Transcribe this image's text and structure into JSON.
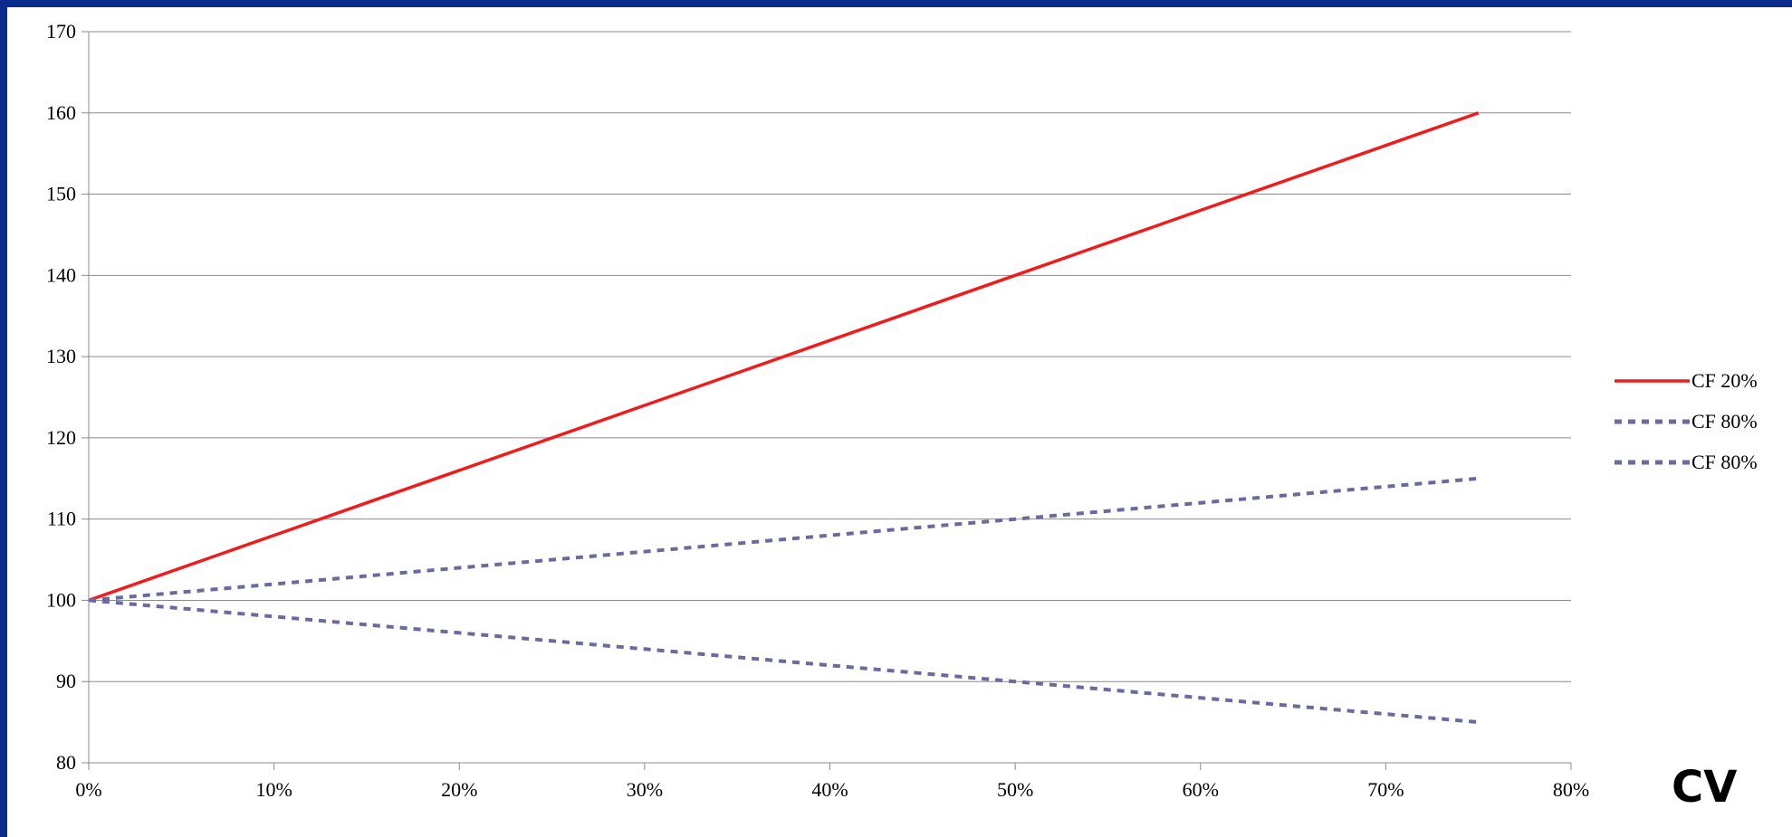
{
  "chart_data": {
    "type": "line",
    "title": "",
    "xlabel": "CV",
    "ylabel": "",
    "xlim": [
      0,
      0.8
    ],
    "ylim": [
      80,
      170
    ],
    "x_ticks": [
      0,
      0.1,
      0.2,
      0.3,
      0.4,
      0.5,
      0.6,
      0.7,
      0.8
    ],
    "x_tick_labels": [
      "0%",
      "10%",
      "20%",
      "30%",
      "40%",
      "50%",
      "60%",
      "70%",
      "80%"
    ],
    "y_ticks": [
      80,
      90,
      100,
      110,
      120,
      130,
      140,
      150,
      160,
      170
    ],
    "y_tick_labels": [
      "80",
      "90",
      "100",
      "110",
      "120",
      "130",
      "140",
      "150",
      "160",
      "170"
    ],
    "grid": "horizontal",
    "legend_position": "right",
    "x": [
      0,
      0.05,
      0.1,
      0.15,
      0.2,
      0.25,
      0.3,
      0.35,
      0.4,
      0.45,
      0.5,
      0.55,
      0.6,
      0.65,
      0.7,
      0.75
    ],
    "series": [
      {
        "name": "CF 20%",
        "color": "#ee1c1c",
        "style": "solid",
        "values": [
          100,
          104,
          108,
          112,
          116,
          120,
          124,
          128,
          132,
          136,
          140,
          144,
          148,
          152,
          156,
          160
        ]
      },
      {
        "name": "CF 80%",
        "color": "#6a6a9e",
        "style": "dotted",
        "values": [
          100,
          101,
          102,
          103,
          104,
          105,
          106,
          107,
          108,
          109,
          110,
          111,
          112,
          113,
          114,
          115
        ]
      },
      {
        "name": "CF 80%",
        "color": "#6a6a9e",
        "style": "dotted",
        "values": [
          100,
          99,
          98,
          97,
          96,
          95,
          94,
          93,
          92,
          91,
          90,
          89,
          88,
          87,
          86,
          85
        ]
      }
    ]
  }
}
